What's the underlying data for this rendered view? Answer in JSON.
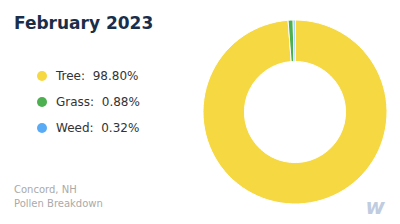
{
  "chart_data": {
    "type": "pie",
    "title": "February 2023",
    "subtitle": [
      "Concord, NH",
      "Pollen Breakdown"
    ],
    "annotations": [
      "w"
    ],
    "categories": [
      "Tree:  98.80%",
      "Grass:  0.88%",
      "Weed:  0.32%"
    ],
    "values": [
      98.8,
      0.88,
      0.32
    ],
    "colors": [
      "#f5d842",
      "#4caf50",
      "#5aabf5"
    ],
    "legend": "left"
  }
}
